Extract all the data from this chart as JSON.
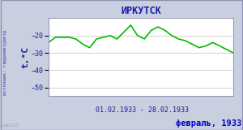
{
  "title": "ИРКУТСК",
  "ylabel": "t,°C",
  "xlabel": "01.02.1933 - 28.02.1933",
  "footer": "февраль, 1933",
  "source_label": "источник: гидрометцентр",
  "lab_label": "lab127",
  "days": [
    1,
    2,
    3,
    4,
    5,
    6,
    7,
    8,
    9,
    10,
    11,
    12,
    13,
    14,
    15,
    16,
    17,
    18,
    19,
    20,
    21,
    22,
    23,
    24,
    25,
    26,
    27,
    28
  ],
  "temps": [
    -24,
    -21,
    -21,
    -21,
    -22,
    -25,
    -27,
    -22,
    -21,
    -20,
    -22,
    -18,
    -14,
    -20,
    -22,
    -17,
    -15,
    -17,
    -20,
    -22,
    -23,
    -25,
    -27,
    -26,
    -24,
    -26,
    -28,
    -30
  ],
  "line_color": "#00bb00",
  "bg_color": "#c8d0e0",
  "plot_bg": "#ffffff",
  "border_color": "#9090b0",
  "title_color": "#1a1aaa",
  "label_color": "#1a1a99",
  "footer_color": "#0000cc",
  "source_color": "#3333aa",
  "grid_color": "#c0c0c0",
  "ylim": [
    -55,
    -10
  ],
  "yticks": [
    -50,
    -40,
    -30,
    -20
  ],
  "fig_width": 3.0,
  "fig_height": 1.6,
  "dpi": 100
}
